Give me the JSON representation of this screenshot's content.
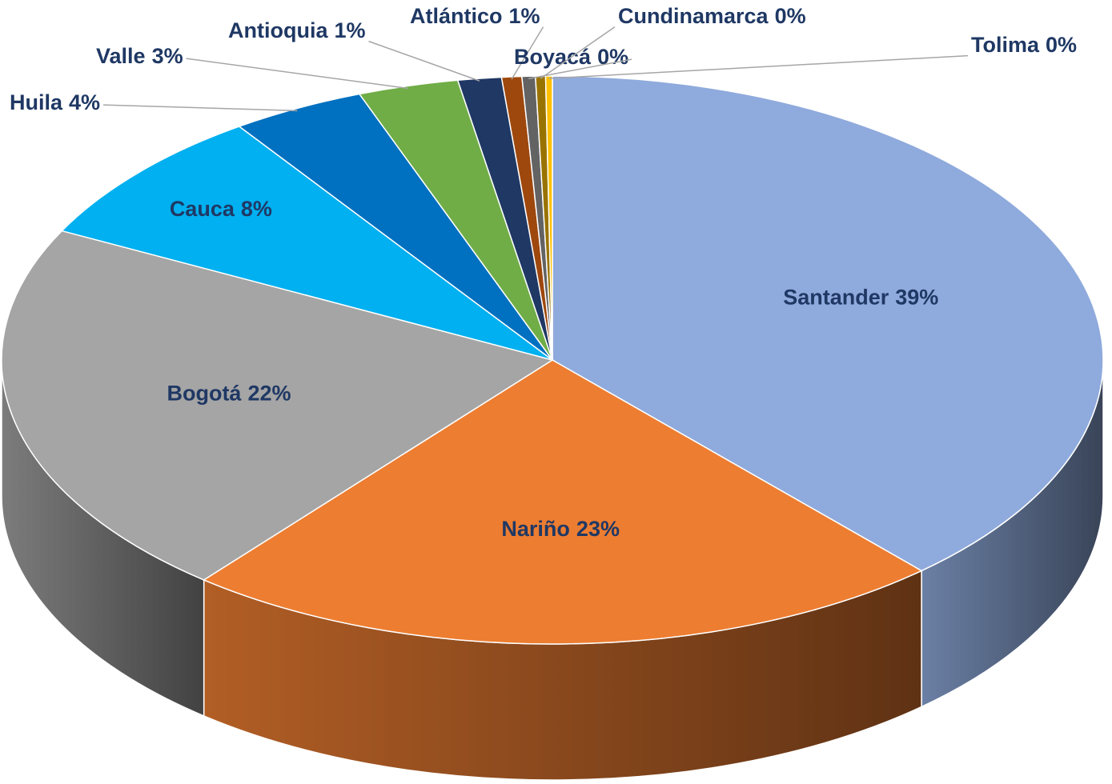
{
  "chart_data": {
    "type": "pie3d",
    "categories": [
      "Santander",
      "Nariño",
      "Bogotá",
      "Cauca",
      "Huila",
      "Valle",
      "Antioquia",
      "Atlántico",
      "Boyacá",
      "Cundinamarca",
      "Tolima"
    ],
    "values": [
      39,
      23,
      22,
      8,
      4,
      3,
      1.3,
      0.6,
      0.4,
      0.3,
      0.2
    ],
    "value_labels": [
      "39%",
      "23%",
      "22%",
      "8%",
      "4%",
      "3%",
      "1%",
      "1%",
      "0%",
      "0%",
      "0%"
    ],
    "colors": [
      "#8faadc",
      "#ed7d31",
      "#a5a5a5",
      "#00b0f0",
      "#0070c0",
      "#70ad47",
      "#1f3864",
      "#9e480e",
      "#636363",
      "#997300",
      "#ffc000"
    ]
  }
}
